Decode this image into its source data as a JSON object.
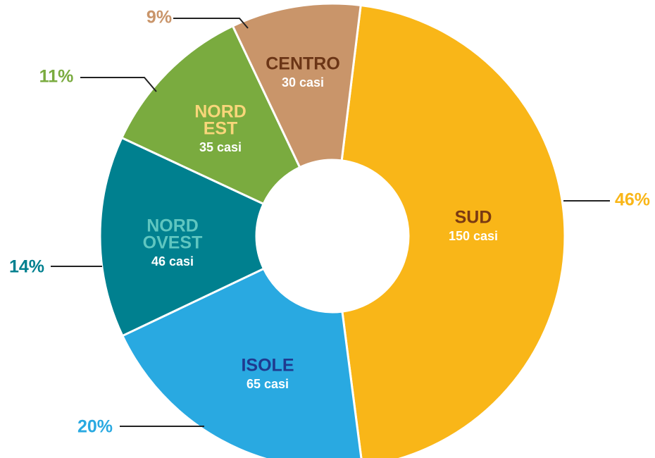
{
  "chart_data": {
    "type": "donut",
    "categories": [
      [
        "SUD"
      ],
      [
        "ISOLE"
      ],
      [
        "NORD",
        "OVEST"
      ],
      [
        "NORD",
        "EST"
      ],
      [
        "CENTRO"
      ]
    ],
    "values": [
      46,
      20,
      14,
      11,
      9
    ],
    "value_labels": [
      "46%",
      "20%",
      "14%",
      "11%",
      "9%"
    ],
    "count_labels": [
      "150 casi",
      "65 casi",
      "46 casi",
      "35 casi",
      "30 casi"
    ],
    "colors": [
      "#f9b618",
      "#29a9e1",
      "#00808f",
      "#7aab3f",
      "#c9956a"
    ],
    "name_colors": [
      "#7a3a12",
      "#1f3a8f",
      "#5fc6c0",
      "#f8d67a",
      "#6b3516"
    ]
  }
}
